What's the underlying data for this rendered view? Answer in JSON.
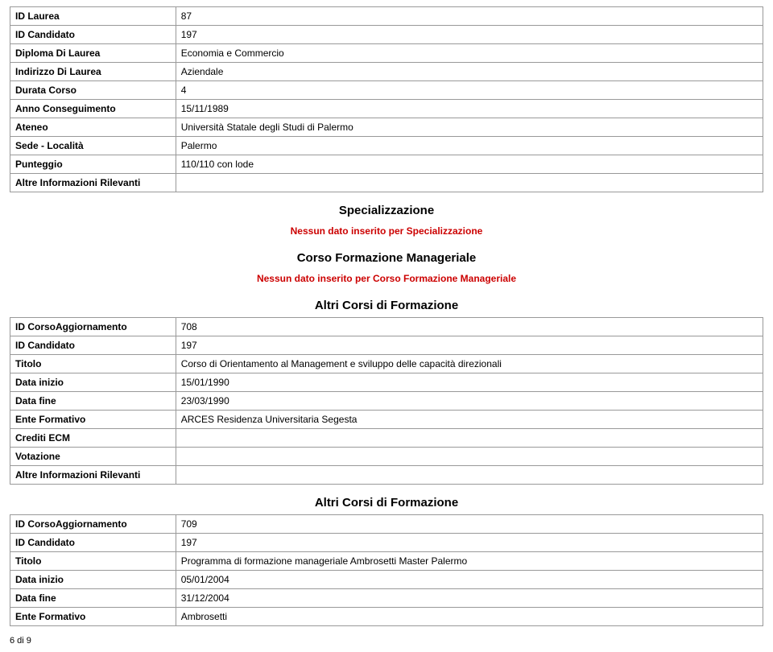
{
  "tables": {
    "laurea": {
      "rows": [
        {
          "label": "ID Laurea",
          "value": "87"
        },
        {
          "label": "ID Candidato",
          "value": "197"
        },
        {
          "label": "Diploma Di Laurea",
          "value": "Economia e Commercio"
        },
        {
          "label": "Indirizzo Di Laurea",
          "value": "Aziendale"
        },
        {
          "label": "Durata Corso",
          "value": "4"
        },
        {
          "label": "Anno Conseguimento",
          "value": "15/11/1989"
        },
        {
          "label": "Ateneo",
          "value": "Università Statale degli Studi di Palermo"
        },
        {
          "label": "Sede - Località",
          "value": "Palermo"
        },
        {
          "label": "Punteggio",
          "value": "110/110 con lode"
        },
        {
          "label": "Altre Informazioni Rilevanti",
          "value": ""
        }
      ]
    },
    "corso708": {
      "rows": [
        {
          "label": "ID CorsoAggiornamento",
          "value": "708"
        },
        {
          "label": "ID Candidato",
          "value": "197"
        },
        {
          "label": "Titolo",
          "value": "Corso di Orientamento al Management e sviluppo delle capacità direzionali"
        },
        {
          "label": "Data inizio",
          "value": "15/01/1990"
        },
        {
          "label": "Data fine",
          "value": "23/03/1990"
        },
        {
          "label": "Ente Formativo",
          "value": "ARCES Residenza Universitaria Segesta"
        },
        {
          "label": "Crediti ECM",
          "value": ""
        },
        {
          "label": "Votazione",
          "value": ""
        },
        {
          "label": "Altre Informazioni Rilevanti",
          "value": ""
        }
      ]
    },
    "corso709": {
      "rows": [
        {
          "label": "ID CorsoAggiornamento",
          "value": "709"
        },
        {
          "label": "ID Candidato",
          "value": "197"
        },
        {
          "label": "Titolo",
          "value": "Programma di formazione manageriale Ambrosetti Master Palermo"
        },
        {
          "label": "Data inizio",
          "value": "05/01/2004"
        },
        {
          "label": "Data fine",
          "value": "31/12/2004"
        },
        {
          "label": "Ente Formativo",
          "value": "Ambrosetti"
        }
      ]
    }
  },
  "sections": {
    "specializzazione": "Specializzazione",
    "specializzazione_note": "Nessun dato inserito per Specializzazione",
    "corso_mgr": "Corso Formazione Manageriale",
    "corso_mgr_note": "Nessun dato inserito per Corso Formazione Manageriale",
    "altri_corsi": "Altri Corsi di Formazione"
  },
  "footer": "6 di 9"
}
